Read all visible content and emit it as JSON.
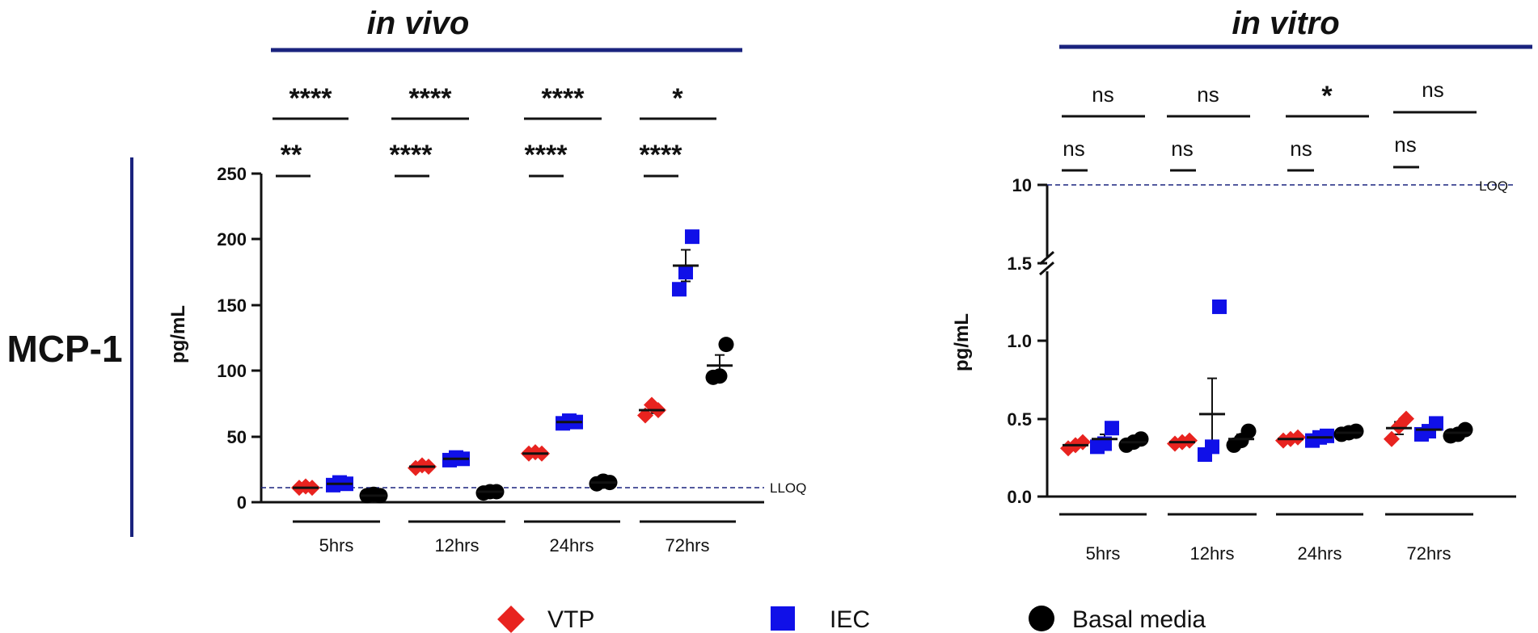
{
  "chart_data": [
    {
      "id": "in-vivo",
      "type": "scatter",
      "title": "in vivo",
      "row_label": "MCP-1",
      "ylabel": "pg/mL",
      "xlabel": "",
      "ylim": [
        0,
        250
      ],
      "yticks": [
        "0",
        "50",
        "100",
        "150",
        "200",
        "250"
      ],
      "categories": [
        "5hrs",
        "12hrs",
        "24hrs",
        "72hrs"
      ],
      "limit_line": {
        "label": "LLOQ",
        "value": 11
      },
      "series": [
        {
          "name": "VTP",
          "color": "#e8231f",
          "marker": "diamond",
          "points": [
            [
              11,
              12,
              11
            ],
            [
              26,
              28,
              27
            ],
            [
              37,
              38,
              37
            ],
            [
              66,
              74,
              70
            ]
          ],
          "means": [
            11,
            27,
            37,
            70
          ],
          "sem": [
            0.5,
            0.6,
            0.4,
            2.3
          ]
        },
        {
          "name": "IEC",
          "color": "#1010e8",
          "marker": "square",
          "points": [
            [
              13,
              15,
              14
            ],
            [
              32,
              34,
              33
            ],
            [
              60,
              62,
              61
            ],
            [
              162,
              175,
              202
            ]
          ],
          "means": [
            14,
            33,
            61,
            180
          ],
          "sem": [
            0.6,
            0.6,
            0.6,
            12
          ]
        },
        {
          "name": "Basal media",
          "color": "#000000",
          "marker": "circle",
          "points": [
            [
              5,
              6,
              5
            ],
            [
              7,
              8,
              8
            ],
            [
              14,
              16,
              15
            ],
            [
              95,
              96,
              120
            ]
          ],
          "means": [
            5,
            8,
            15,
            104
          ],
          "sem": [
            0.3,
            0.3,
            0.6,
            8
          ]
        }
      ],
      "significance_top": [
        "****",
        "****",
        "****",
        "*"
      ],
      "significance_bottom": [
        "**",
        "****",
        "****",
        "****"
      ]
    },
    {
      "id": "in-vitro",
      "type": "scatter",
      "title": "in vitro",
      "ylabel": "pg/mL",
      "xlabel": "",
      "ylim": [
        0,
        1.5
      ],
      "broken_axis_upper_tick": "10",
      "yticks": [
        "0.0",
        "0.5",
        "1.0",
        "1.5"
      ],
      "categories": [
        "5hrs",
        "12hrs",
        "24hrs",
        "72hrs"
      ],
      "limit_line": {
        "label": "LOQ",
        "value": 10
      },
      "series": [
        {
          "name": "VTP",
          "color": "#e8231f",
          "marker": "diamond",
          "points": [
            [
              0.31,
              0.33,
              0.35
            ],
            [
              0.34,
              0.35,
              0.36
            ],
            [
              0.36,
              0.37,
              0.38
            ],
            [
              0.37,
              0.45,
              0.5
            ]
          ],
          "means": [
            0.33,
            0.35,
            0.37,
            0.44
          ],
          "sem": [
            0.01,
            0.005,
            0.005,
            0.04
          ]
        },
        {
          "name": "IEC",
          "color": "#1010e8",
          "marker": "square",
          "points": [
            [
              0.32,
              0.34,
              0.44
            ],
            [
              0.27,
              0.32,
              1.22
            ],
            [
              0.36,
              0.38,
              0.39
            ],
            [
              0.4,
              0.42,
              0.47
            ]
          ],
          "means": [
            0.37,
            0.53,
            0.38,
            0.43
          ],
          "sem": [
            0.03,
            0.23,
            0.01,
            0.02
          ]
        },
        {
          "name": "Basal media",
          "color": "#000000",
          "marker": "circle",
          "points": [
            [
              0.33,
              0.35,
              0.37
            ],
            [
              0.33,
              0.36,
              0.42
            ],
            [
              0.4,
              0.41,
              0.42
            ],
            [
              0.39,
              0.4,
              0.43
            ]
          ],
          "means": [
            0.35,
            0.37,
            0.41,
            0.41
          ],
          "sem": [
            0.01,
            0.03,
            0.005,
            0.01
          ]
        }
      ],
      "significance_top": [
        "ns",
        "ns",
        "*",
        "ns"
      ],
      "significance_bottom": [
        "ns",
        "ns",
        "ns",
        "ns"
      ]
    }
  ],
  "legend": [
    {
      "label": "VTP",
      "color": "#e8231f",
      "marker": "diamond"
    },
    {
      "label": "IEC",
      "color": "#1010e8",
      "marker": "square"
    },
    {
      "label": "Basal media",
      "color": "#000000",
      "marker": "circle"
    }
  ],
  "colors": {
    "accent_line": "#1a237e",
    "axis": "#111111",
    "limit_line": "#1a237e"
  }
}
